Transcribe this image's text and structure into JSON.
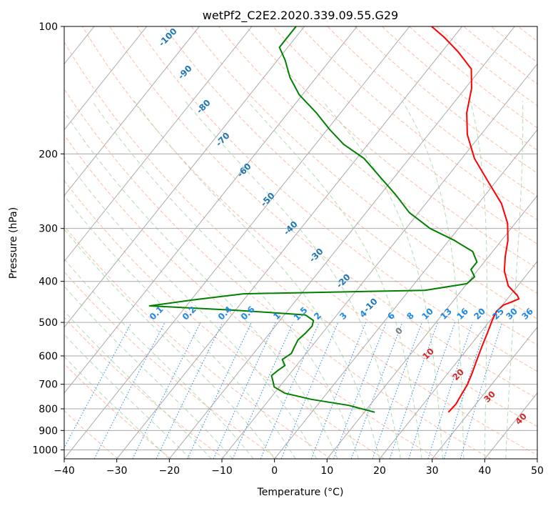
{
  "chart_data": {
    "type": "line",
    "title": "wetPf2_C2E2.2020.339.09.55.G29",
    "xlabel": "Temperature (°C)",
    "ylabel": "Pressure (hPa)",
    "xlim": [
      -40,
      50
    ],
    "ylim": [
      1050,
      100
    ],
    "y_scale": "log",
    "skew": "skew-T",
    "grid": true,
    "x_ticks": [
      "−40",
      "−30",
      "−20",
      "−10",
      "0",
      "10",
      "20",
      "30",
      "40",
      "50"
    ],
    "y_ticks": [
      "1000",
      "900",
      "800",
      "700",
      "600",
      "500",
      "400",
      "300",
      "200",
      "100"
    ],
    "colors": {
      "temperature": "#ff0000",
      "dewpoint": "#008000",
      "isotherm": "#aaaaaa",
      "dry_adiabat": "#ffb090",
      "moist_adiabat": "#a8d8a8",
      "mixing_ratio": "#1e88e5",
      "adiabat_label": "#1f77b4",
      "warm_label": "#d62728",
      "zero_label": "#808080",
      "boundary_curve": "#d8c8a8"
    },
    "series": [
      {
        "role": "temperature",
        "points": [
          [
            26,
            815
          ],
          [
            26.2,
            780
          ],
          [
            25.8,
            740
          ],
          [
            25.4,
            700
          ],
          [
            24.6,
            660
          ],
          [
            23.4,
            610
          ],
          [
            22.4,
            570
          ],
          [
            21.4,
            530
          ],
          [
            20.4,
            495
          ],
          [
            19.8,
            470
          ],
          [
            20.2,
            455
          ],
          [
            21.2,
            448
          ],
          [
            22.2,
            440
          ],
          [
            21.4,
            432
          ],
          [
            18.2,
            410
          ],
          [
            15.2,
            378
          ],
          [
            13.2,
            350
          ],
          [
            11.2,
            320
          ],
          [
            8.6,
            292
          ],
          [
            4.4,
            262
          ],
          [
            -1.6,
            232
          ],
          [
            -7.6,
            205
          ],
          [
            -12.6,
            180
          ],
          [
            -16,
            160
          ],
          [
            -18.8,
            140
          ],
          [
            -21.8,
            126
          ],
          [
            -26.8,
            115
          ],
          [
            -31.8,
            106
          ],
          [
            -35.8,
            100
          ]
        ]
      },
      {
        "role": "dewpoint",
        "points": [
          [
            12,
            815
          ],
          [
            6,
            785
          ],
          [
            -2,
            760
          ],
          [
            -8,
            735
          ],
          [
            -11,
            710
          ],
          [
            -12,
            690
          ],
          [
            -13.2,
            668
          ],
          [
            -12.8,
            650
          ],
          [
            -12.2,
            632
          ],
          [
            -13.6,
            612
          ],
          [
            -12.8,
            592
          ],
          [
            -13.2,
            572
          ],
          [
            -13.6,
            550
          ],
          [
            -13.2,
            530
          ],
          [
            -13,
            510
          ],
          [
            -13.6,
            495
          ],
          [
            -16,
            480
          ],
          [
            -30,
            468
          ],
          [
            -47,
            457
          ],
          [
            -40,
            443
          ],
          [
            -31,
            428
          ],
          [
            3,
            420
          ],
          [
            10,
            405
          ],
          [
            10.4,
            390
          ],
          [
            8.6,
            375
          ],
          [
            8.6,
            360
          ],
          [
            6.2,
            340
          ],
          [
            1,
            320
          ],
          [
            -5.4,
            300
          ],
          [
            -11.8,
            275
          ],
          [
            -17,
            250
          ],
          [
            -22.4,
            228
          ],
          [
            -28.6,
            205
          ],
          [
            -34.6,
            190
          ],
          [
            -39.6,
            175
          ],
          [
            -44.6,
            160
          ],
          [
            -50.6,
            145
          ],
          [
            -55,
            132
          ],
          [
            -58.6,
            120
          ],
          [
            -61.6,
            112
          ],
          [
            -61.6,
            105
          ],
          [
            -61.6,
            100
          ]
        ]
      }
    ],
    "annotations": {
      "adiabat_labels": [
        "-100",
        "-90",
        "-80",
        "-70",
        "-60",
        "-50",
        "-40",
        "-30",
        "-20",
        "-10"
      ],
      "mixing_ratio_labels": [
        "0.1",
        "0.2",
        "0.4",
        "0.6",
        "1",
        "1.5",
        "2",
        "3",
        "4",
        "6",
        "8",
        "10",
        "13",
        "16",
        "20",
        "25",
        "30",
        "36"
      ],
      "zero_label": "0",
      "warm_labels": [
        "10",
        "20",
        "30",
        "40"
      ]
    }
  }
}
